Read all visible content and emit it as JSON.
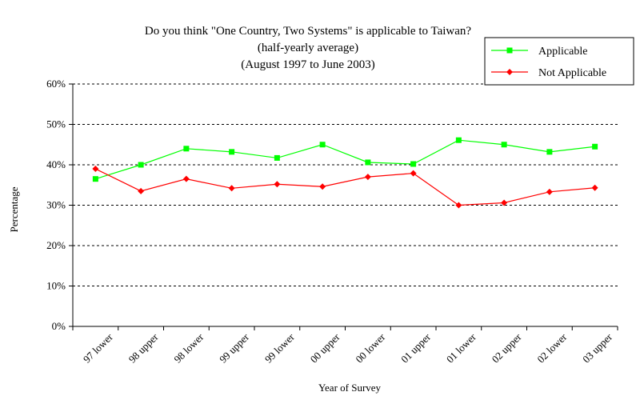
{
  "chart_data": {
    "type": "line",
    "title_lines": [
      "Do you think \"One Country, Two Systems\" is applicable to Taiwan?",
      "(half-yearly average)",
      "(August 1997 to June 2003)"
    ],
    "xlabel": "Year of Survey",
    "ylabel": "Percentage",
    "ylim": [
      0,
      60
    ],
    "yticks": [
      "0%",
      "10%",
      "20%",
      "30%",
      "40%",
      "50%",
      "60%"
    ],
    "grid": "horizontal dashed",
    "legend_position": "top-right",
    "categories": [
      "97 lower",
      "98 upper",
      "98 lower",
      "99 upper",
      "99 lower",
      "00 upper",
      "00 lower",
      "01 upper",
      "01 lower",
      "02 upper",
      "02 lower",
      "03 upper"
    ],
    "series": [
      {
        "name": "Applicable",
        "color": "#00ff00",
        "marker": "square",
        "values": [
          36.5,
          40.0,
          44.0,
          43.2,
          41.7,
          45.0,
          40.6,
          40.2,
          46.1,
          45.0,
          43.2,
          44.5
        ]
      },
      {
        "name": "Not Applicable",
        "color": "#ff0000",
        "marker": "diamond",
        "values": [
          39.0,
          33.5,
          36.5,
          34.2,
          35.2,
          34.6,
          37.0,
          37.9,
          30.0,
          30.6,
          33.3,
          34.3
        ]
      }
    ]
  }
}
